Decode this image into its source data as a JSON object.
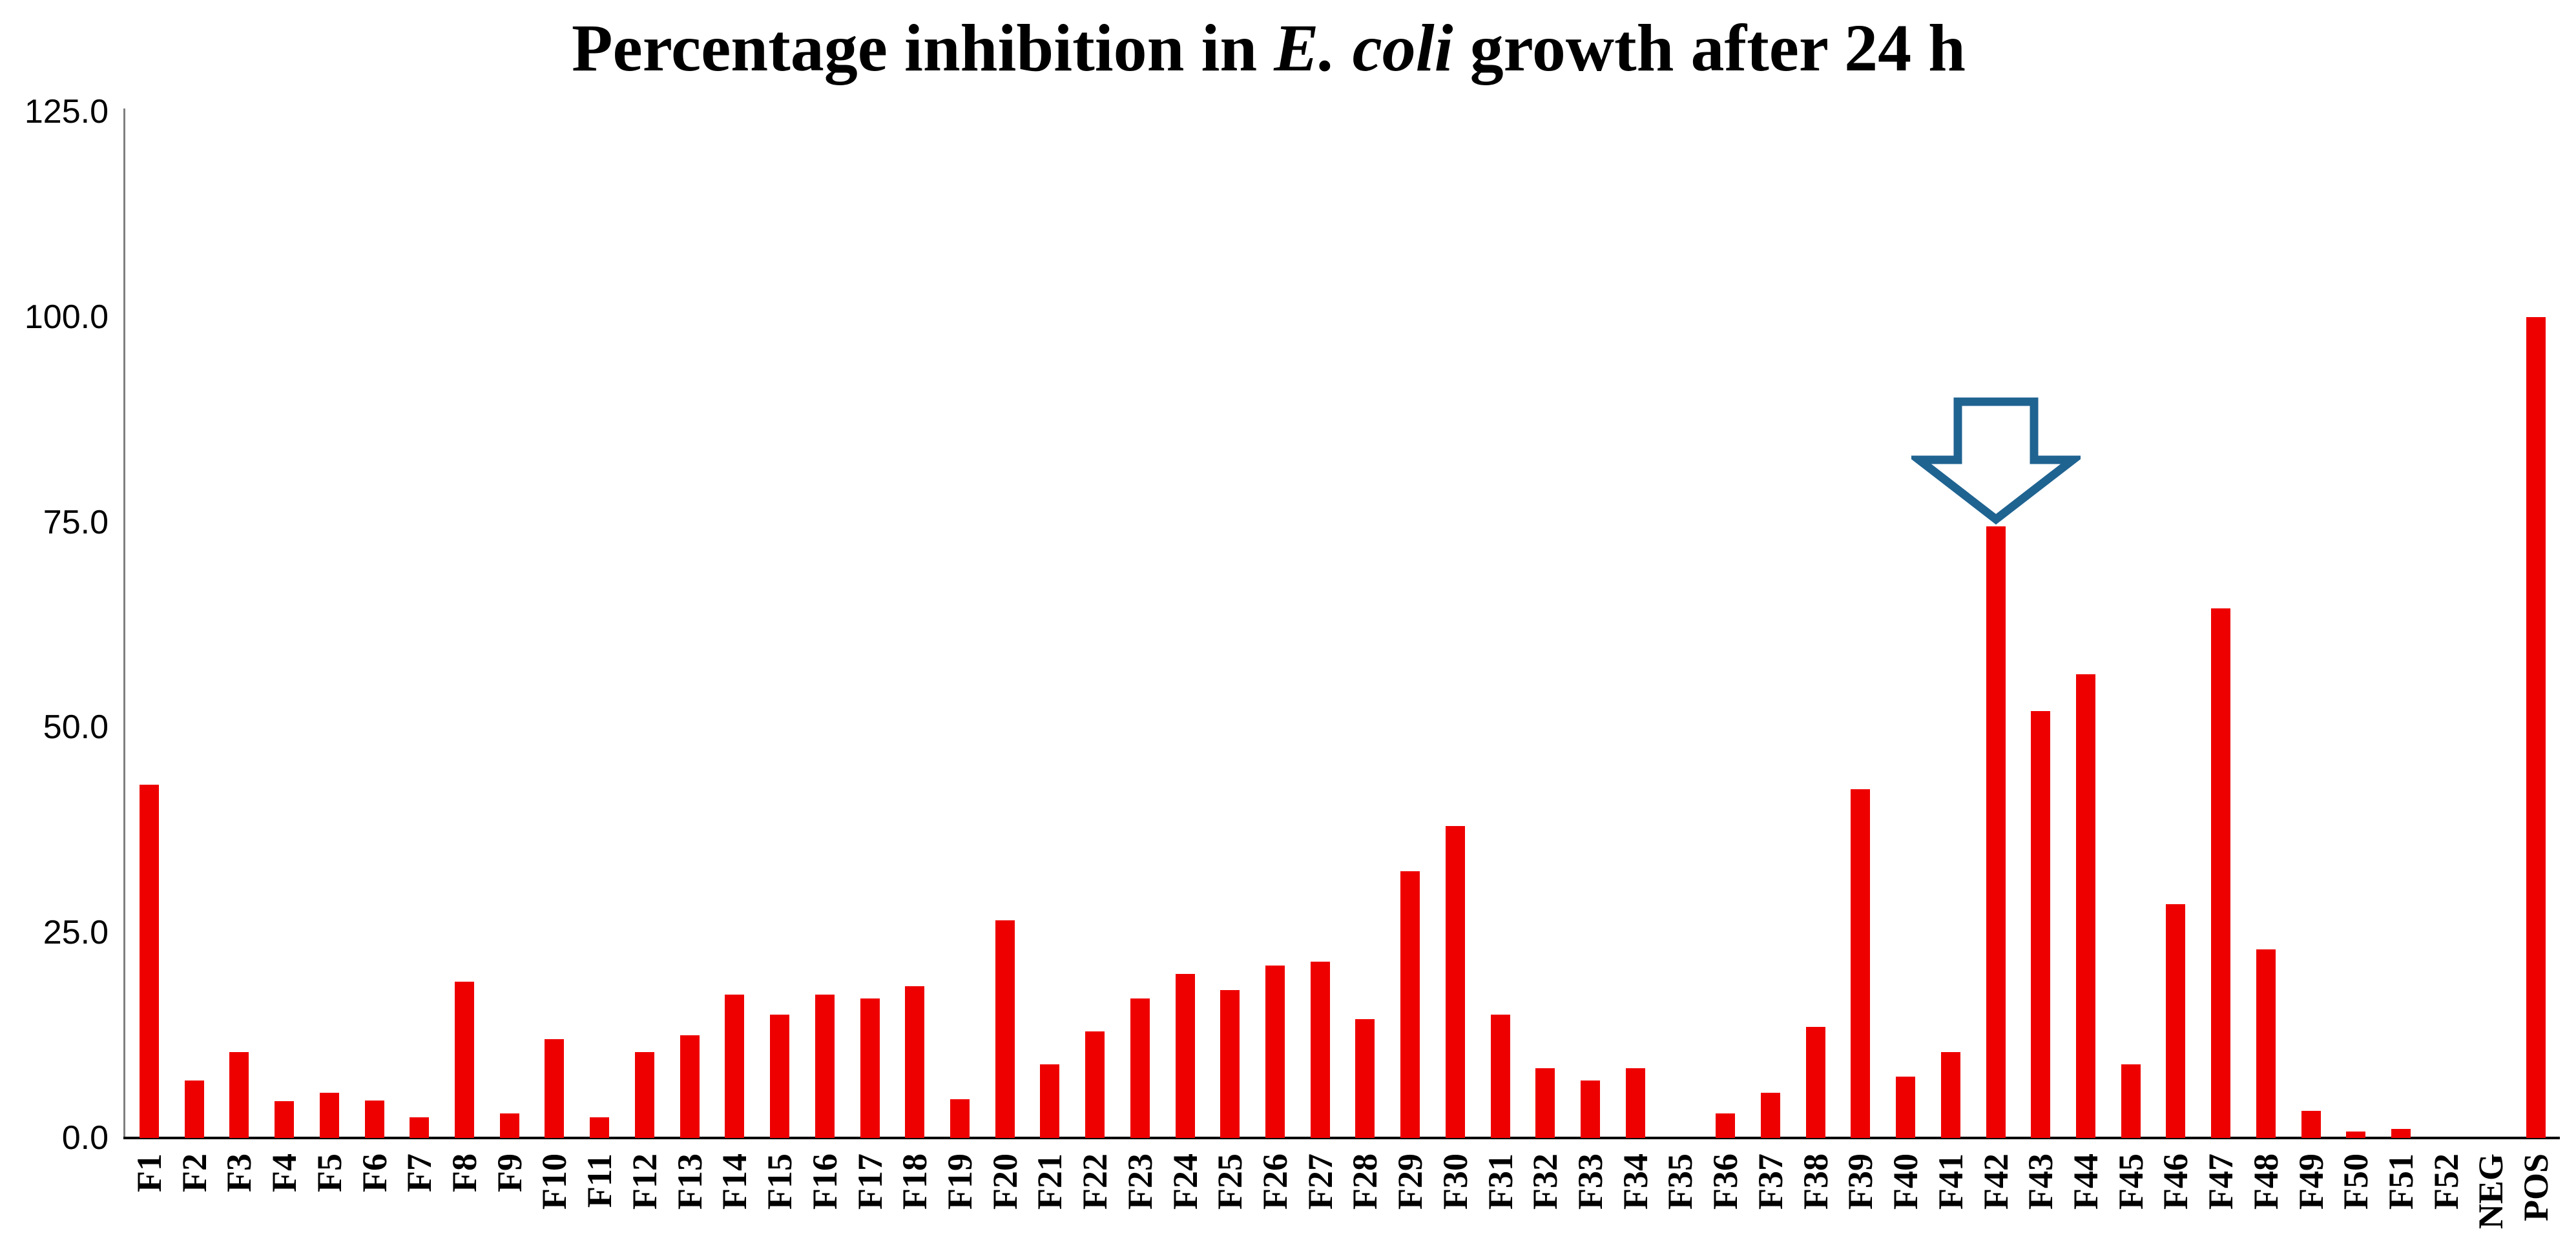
{
  "title": {
    "prefix": "Percentage inhibition in ",
    "italic": "E. coli",
    "suffix": " growth after 24 h"
  },
  "colors": {
    "bar": "#ee0000",
    "arrow_outline": "#1f6391",
    "arrow_fill": "#ffffff",
    "y_axis_line": "#7f7f7f",
    "x_axis_line": "#000000",
    "text": "#000000",
    "background": "#ffffff"
  },
  "chart_data": {
    "type": "bar",
    "title": "Percentage inhibition in E. coli growth after 24 h",
    "xlabel": "",
    "ylabel": "",
    "ylim": [
      0,
      125
    ],
    "y_ticks": [
      "125.0",
      "100.0",
      "75.0",
      "50.0",
      "25.0",
      "0.0"
    ],
    "grid": false,
    "legend": false,
    "categories": [
      "F1",
      "F2",
      "F3",
      "F4",
      "F5",
      "F6",
      "F7",
      "F8",
      "F9",
      "F10",
      "F11",
      "F12",
      "F13",
      "F14",
      "F15",
      "F16",
      "F17",
      "F18",
      "F19",
      "F20",
      "F21",
      "F22",
      "F23",
      "F24",
      "F25",
      "F26",
      "F27",
      "F28",
      "F29",
      "F30",
      "F31",
      "F32",
      "F33",
      "F34",
      "F35",
      "F36",
      "F37",
      "F38",
      "F39",
      "F40",
      "F41",
      "F42",
      "F43",
      "F44",
      "F45",
      "F46",
      "F47",
      "F48",
      "F49",
      "F50",
      "F51",
      "F52",
      "NEG",
      "POS"
    ],
    "values": [
      43,
      7,
      10.5,
      4.5,
      5.5,
      4.6,
      2.5,
      19,
      3,
      12,
      2.5,
      10.5,
      12.5,
      17.5,
      15,
      17.5,
      17,
      18.5,
      4.7,
      26.5,
      9,
      13,
      17,
      20,
      18,
      21,
      21.5,
      14.5,
      32.5,
      38,
      15,
      8.5,
      7,
      8.5,
      0,
      3,
      5.5,
      13.5,
      42.5,
      7.5,
      10.5,
      74.5,
      52,
      56.5,
      9,
      28.5,
      64.5,
      23,
      3.3,
      0.8,
      1.1,
      0,
      0,
      100
    ],
    "annotations": [
      {
        "type": "down-block-arrow",
        "target": "F42",
        "color": "#1f6391"
      }
    ]
  }
}
